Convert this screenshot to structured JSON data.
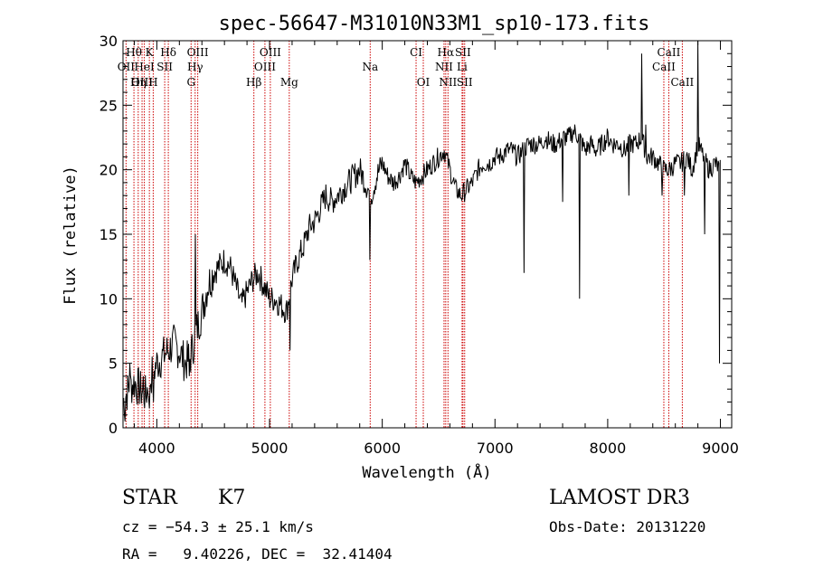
{
  "chart_data": {
    "type": "line",
    "title": "spec-56647-M31010N33M1_sp10-173.fits",
    "xlabel": "Wavelength (Å)",
    "ylabel": "Flux (relative)",
    "xlim": [
      3700,
      9100
    ],
    "ylim": [
      0,
      30
    ],
    "xticks": [
      4000,
      5000,
      6000,
      7000,
      8000,
      9000
    ],
    "yticks": [
      0,
      5,
      10,
      15,
      20,
      25,
      30
    ],
    "xtick_labels": [
      "4000",
      "5000",
      "6000",
      "7000",
      "8000",
      "9000"
    ],
    "ytick_labels": [
      "0",
      "5",
      "10",
      "15",
      "20",
      "25",
      "30"
    ],
    "line_color": "#cc0000",
    "spectrum_color": "#000000",
    "spectrum": {
      "x": [
        3700,
        3750,
        3800,
        3850,
        3900,
        3950,
        4000,
        4050,
        4100,
        4150,
        4200,
        4250,
        4300,
        4350,
        4400,
        4450,
        4500,
        4550,
        4600,
        4650,
        4700,
        4750,
        4800,
        4850,
        4900,
        4950,
        5000,
        5050,
        5100,
        5150,
        5200,
        5250,
        5300,
        5350,
        5400,
        5450,
        5500,
        5550,
        5600,
        5650,
        5700,
        5750,
        5800,
        5850,
        5900,
        5950,
        6000,
        6050,
        6100,
        6150,
        6200,
        6250,
        6300,
        6350,
        6400,
        6450,
        6500,
        6550,
        6600,
        6650,
        6700,
        6750,
        6800,
        6850,
        6900,
        6950,
        7000,
        7050,
        7100,
        7150,
        7200,
        7250,
        7300,
        7350,
        7400,
        7450,
        7500,
        7550,
        7600,
        7650,
        7700,
        7750,
        7800,
        7850,
        7900,
        7950,
        8000,
        8050,
        8100,
        8150,
        8200,
        8250,
        8300,
        8350,
        8400,
        8450,
        8500,
        8550,
        8600,
        8650,
        8700,
        8750,
        8800,
        8850,
        8900,
        8950,
        9000
      ],
      "y": [
        2.0,
        3.0,
        3.5,
        3.0,
        2.5,
        4.0,
        5.0,
        5.5,
        6.0,
        6.5,
        6.0,
        5.0,
        5.5,
        7.5,
        9.0,
        11.0,
        12.0,
        12.5,
        13.0,
        12.5,
        11.0,
        9.5,
        10.5,
        11.5,
        12.0,
        11.0,
        10.0,
        10.0,
        9.5,
        9.0,
        11.5,
        13.0,
        14.0,
        15.5,
        16.0,
        17.0,
        18.0,
        17.5,
        18.0,
        18.5,
        19.0,
        19.5,
        20.0,
        19.0,
        18.0,
        19.5,
        20.5,
        19.5,
        19.0,
        19.5,
        20.5,
        19.5,
        19.0,
        19.5,
        20.0,
        20.5,
        21.0,
        21.5,
        20.0,
        18.5,
        18.0,
        18.5,
        19.0,
        20.0,
        20.5,
        20.5,
        21.0,
        21.0,
        21.5,
        21.5,
        21.0,
        21.5,
        22.0,
        22.0,
        22.0,
        22.5,
        22.0,
        22.0,
        22.5,
        22.5,
        23.0,
        22.5,
        21.5,
        22.0,
        21.5,
        22.0,
        22.5,
        22.0,
        22.0,
        21.5,
        22.0,
        22.0,
        22.5,
        21.0,
        21.0,
        20.5,
        20.0,
        20.0,
        20.5,
        20.5,
        21.0,
        20.0,
        22.0,
        21.0,
        20.0,
        20.5,
        20.0
      ]
    },
    "spikes": [
      {
        "x": 3720,
        "y": 0.5
      },
      {
        "x": 3760,
        "y": 5.0
      },
      {
        "x": 3880,
        "y": 4.0
      },
      {
        "x": 3935,
        "y": 1.5
      },
      {
        "x": 3970,
        "y": 2.0
      },
      {
        "x": 4340,
        "y": 15.0
      },
      {
        "x": 4290,
        "y": 4.0
      },
      {
        "x": 5180,
        "y": 6.0
      },
      {
        "x": 5890,
        "y": 13.0
      },
      {
        "x": 7260,
        "y": 12.0
      },
      {
        "x": 7600,
        "y": 17.5
      },
      {
        "x": 7750,
        "y": 10.0
      },
      {
        "x": 8190,
        "y": 18.0
      },
      {
        "x": 8300,
        "y": 29.0
      },
      {
        "x": 8340,
        "y": 23.5
      },
      {
        "x": 8480,
        "y": 18.0
      },
      {
        "x": 8680,
        "y": 18.0
      },
      {
        "x": 8800,
        "y": 30.0
      },
      {
        "x": 8860,
        "y": 15.0
      },
      {
        "x": 8990,
        "y": 5.0
      }
    ],
    "line_markers": [
      {
        "label": "Hθ",
        "x": 3797,
        "row": 1
      },
      {
        "label": "OII",
        "x": 3727,
        "row": 2
      },
      {
        "label": "OIII",
        "x": 3869,
        "row": 3
      },
      {
        "label": "K",
        "x": 3934,
        "row": 1
      },
      {
        "label": "HeI",
        "x": 3889,
        "row": 2
      },
      {
        "label": "Hη",
        "x": 3835,
        "row": 3
      },
      {
        "label": "H",
        "x": 3968,
        "row": 3
      },
      {
        "label": "SII",
        "x": 4070,
        "row": 2
      },
      {
        "label": "Hδ",
        "x": 4102,
        "row": 1
      },
      {
        "label": "OIII",
        "x": 4363,
        "row": 1
      },
      {
        "label": "Hγ",
        "x": 4340,
        "row": 2
      },
      {
        "label": "G",
        "x": 4304,
        "row": 3
      },
      {
        "label": "OIII",
        "x": 5007,
        "row": 1
      },
      {
        "label": "OIII",
        "x": 4959,
        "row": 2
      },
      {
        "label": "Hβ",
        "x": 4861,
        "row": 3
      },
      {
        "label": "Mg",
        "x": 5175,
        "row": 3
      },
      {
        "label": "Na",
        "x": 5893,
        "row": 2
      },
      {
        "label": "CI",
        "x": 6300,
        "row": 1
      },
      {
        "label": "OI",
        "x": 6364,
        "row": 3
      },
      {
        "label": "Hα",
        "x": 6563,
        "row": 1
      },
      {
        "label": "NII",
        "x": 6548,
        "row": 2
      },
      {
        "label": "NII",
        "x": 6583,
        "row": 3
      },
      {
        "label": "SII",
        "x": 6716,
        "row": 1
      },
      {
        "label": "Li",
        "x": 6708,
        "row": 2
      },
      {
        "label": "SII",
        "x": 6731,
        "row": 3
      },
      {
        "label": "CaII",
        "x": 8498,
        "row": 2
      },
      {
        "label": "CaII",
        "x": 8542,
        "row": 1
      },
      {
        "label": "CaII",
        "x": 8662,
        "row": 3
      }
    ]
  },
  "footer": {
    "class_label": "STAR",
    "subclass": "K7",
    "survey": "LAMOST DR3",
    "cz": "cz = −54.3 ± 25.1 km/s",
    "obs_date": "Obs-Date: 20131220",
    "coords": "RA =   9.40226, DEC =  32.41404"
  }
}
